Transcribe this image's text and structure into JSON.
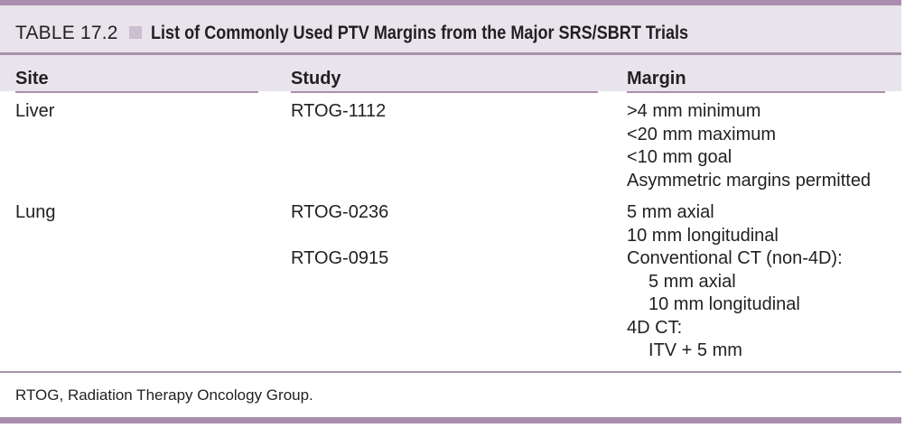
{
  "table": {
    "number": "TABLE 17.2",
    "title": "List of Commonly Used PTV Margins from the Major SRS/SBRT Trials",
    "headers": {
      "site": "Site",
      "study": "Study",
      "margin": "Margin"
    },
    "rows": [
      {
        "site": "Liver",
        "study": "RTOG-1112",
        "margin_lines": [
          ">4 mm minimum",
          "<20 mm maximum",
          "<10 mm goal",
          "Asymmetric margins permitted"
        ]
      },
      {
        "site": "Lung",
        "study": "RTOG-0236",
        "margin_lines": [
          "5 mm axial",
          "10 mm longitudinal"
        ]
      },
      {
        "site": "",
        "study": "RTOG-0915",
        "margin_lines": [
          "Conventional CT (non-4D):",
          "5 mm axial",
          "10 mm longitudinal",
          "4D CT:",
          "ITV + 5 mm"
        ]
      }
    ],
    "footnote": "RTOG, Radiation Therapy Oncology Group."
  },
  "colors": {
    "rule": "#a98fad",
    "band": "#e9e3ec",
    "square": "#cbbfd1",
    "text": "#231f20"
  }
}
